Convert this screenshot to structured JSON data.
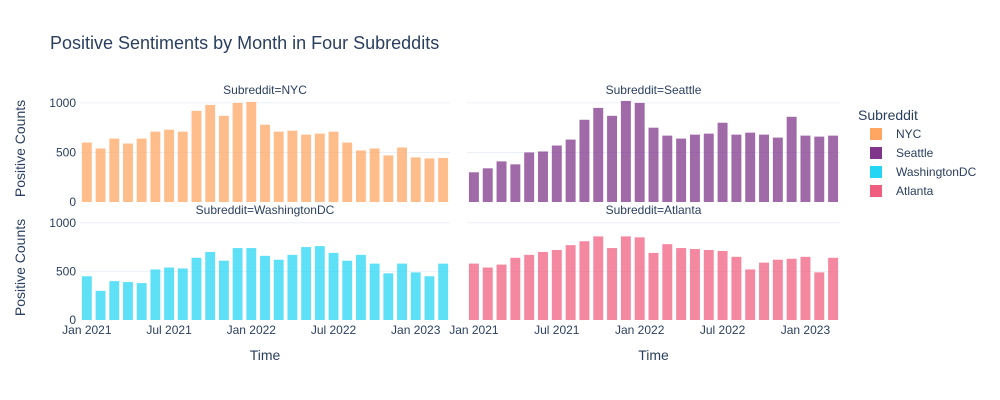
{
  "chart_data": {
    "type": "bar",
    "title": "Positive Sentiments by Month in Four Subreddits",
    "xlabel": "Time",
    "ylabel": "Positive Counts",
    "x_ticks": [
      "Jan 2021",
      "Jul 2021",
      "Jan 2022",
      "Jul 2022",
      "Jan 2023"
    ],
    "yticks": [
      0,
      500,
      1000
    ],
    "ylim": [
      0,
      1080
    ],
    "grid": true,
    "legend": {
      "title": "Subreddit",
      "placement": "right"
    },
    "categories": [
      "2021-01",
      "2021-02",
      "2021-03",
      "2021-04",
      "2021-05",
      "2021-06",
      "2021-07",
      "2021-08",
      "2021-09",
      "2021-10",
      "2021-11",
      "2021-12",
      "2022-01",
      "2022-02",
      "2022-03",
      "2022-04",
      "2022-05",
      "2022-06",
      "2022-07",
      "2022-08",
      "2022-09",
      "2022-10",
      "2022-11",
      "2022-12",
      "2023-01",
      "2023-02",
      "2023-03"
    ],
    "facets": [
      {
        "label": "Subreddit=NYC",
        "series": "NYC",
        "color": "#FFA15A",
        "values": [
          600,
          540,
          640,
          590,
          640,
          710,
          730,
          710,
          920,
          980,
          870,
          1000,
          1010,
          780,
          710,
          720,
          680,
          690,
          710,
          600,
          520,
          540,
          470,
          550,
          450,
          440,
          445
        ]
      },
      {
        "label": "Subreddit=Seattle",
        "series": "Seattle",
        "color": "#782B84",
        "values": [
          300,
          340,
          410,
          380,
          500,
          510,
          570,
          630,
          830,
          950,
          870,
          1020,
          1000,
          750,
          670,
          640,
          680,
          690,
          800,
          680,
          700,
          680,
          650,
          860,
          670,
          660,
          670
        ]
      },
      {
        "label": "Subreddit=WashingtonDC",
        "series": "WashingtonDC",
        "color": "#19D3F3",
        "values": [
          450,
          300,
          400,
          390,
          380,
          520,
          540,
          530,
          640,
          700,
          610,
          740,
          740,
          660,
          620,
          670,
          750,
          760,
          690,
          610,
          670,
          580,
          480,
          580,
          490,
          450,
          580
        ]
      },
      {
        "label": "Subreddit=Atlanta",
        "series": "Atlanta",
        "color": "#EF5578",
        "values": [
          580,
          540,
          570,
          640,
          670,
          700,
          720,
          770,
          810,
          860,
          740,
          860,
          850,
          690,
          780,
          740,
          730,
          720,
          710,
          650,
          520,
          590,
          620,
          630,
          650,
          490,
          640
        ]
      }
    ]
  }
}
